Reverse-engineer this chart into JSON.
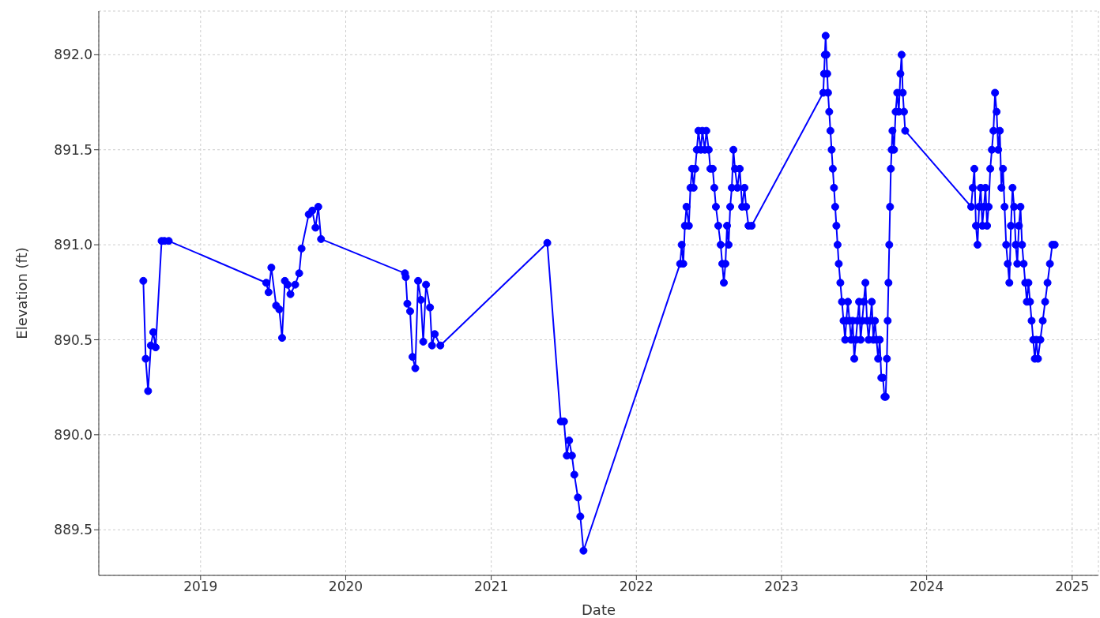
{
  "chart_data": {
    "type": "line",
    "xlabel": "Date",
    "ylabel": "Elevation (ft)",
    "x": [
      "2018-08-10",
      "2018-08-16",
      "2018-08-22",
      "2018-08-29",
      "2018-09-04",
      "2018-09-10",
      "2018-09-25",
      "2018-10-02",
      "2018-10-13",
      "2019-06-15",
      "2019-06-21",
      "2019-06-28",
      "2019-07-10",
      "2019-07-18",
      "2019-07-25",
      "2019-08-01",
      "2019-08-08",
      "2019-08-15",
      "2019-08-27",
      "2019-09-06",
      "2019-09-12",
      "2019-09-30",
      "2019-10-09",
      "2019-10-17",
      "2019-10-24",
      "2019-10-31",
      "2020-05-29",
      "2020-05-31",
      "2020-06-04",
      "2020-06-11",
      "2020-06-17",
      "2020-06-24",
      "2020-07-01",
      "2020-07-08",
      "2020-07-14",
      "2020-07-21",
      "2020-07-31",
      "2020-08-05",
      "2020-08-12",
      "2020-08-26",
      "2021-05-22",
      "2021-06-25",
      "2021-07-03",
      "2021-07-10",
      "2021-07-16",
      "2021-07-23",
      "2021-07-29",
      "2021-08-07",
      "2021-08-13",
      "2021-08-21",
      "2022-04-21",
      "2022-04-25",
      "2022-04-29",
      "2022-05-03",
      "2022-05-07",
      "2022-05-13",
      "2022-05-17",
      "2022-05-21",
      "2022-05-25",
      "2022-05-29",
      "2022-06-02",
      "2022-06-06",
      "2022-06-12",
      "2022-06-16",
      "2022-06-22",
      "2022-06-26",
      "2022-07-02",
      "2022-07-06",
      "2022-07-12",
      "2022-07-16",
      "2022-07-20",
      "2022-07-26",
      "2022-08-01",
      "2022-08-05",
      "2022-08-09",
      "2022-08-13",
      "2022-08-17",
      "2022-08-21",
      "2022-08-25",
      "2022-08-29",
      "2022-09-02",
      "2022-09-06",
      "2022-09-12",
      "2022-09-18",
      "2022-09-24",
      "2022-09-30",
      "2022-10-04",
      "2022-10-10",
      "2022-10-18",
      "2023-04-16",
      "2023-04-18",
      "2023-04-20",
      "2023-04-22",
      "2023-04-24",
      "2023-04-26",
      "2023-04-28",
      "2023-05-01",
      "2023-05-04",
      "2023-05-07",
      "2023-05-10",
      "2023-05-13",
      "2023-05-16",
      "2023-05-19",
      "2023-05-22",
      "2023-05-25",
      "2023-05-29",
      "2023-06-02",
      "2023-06-06",
      "2023-06-10",
      "2023-06-13",
      "2023-06-17",
      "2023-06-21",
      "2023-06-25",
      "2023-06-29",
      "2023-07-03",
      "2023-07-07",
      "2023-07-11",
      "2023-07-15",
      "2023-07-19",
      "2023-07-23",
      "2023-07-27",
      "2023-07-31",
      "2023-08-04",
      "2023-08-08",
      "2023-08-12",
      "2023-08-16",
      "2023-08-20",
      "2023-08-24",
      "2023-08-28",
      "2023-09-01",
      "2023-09-05",
      "2023-09-09",
      "2023-09-13",
      "2023-09-17",
      "2023-09-20",
      "2023-09-23",
      "2023-09-25",
      "2023-09-27",
      "2023-09-29",
      "2023-10-01",
      "2023-10-03",
      "2023-10-05",
      "2023-10-07",
      "2023-10-11",
      "2023-10-15",
      "2023-10-19",
      "2023-10-23",
      "2023-10-27",
      "2023-10-30",
      "2023-11-02",
      "2023-11-05",
      "2023-11-08",
      "2024-04-22",
      "2024-04-26",
      "2024-04-30",
      "2024-05-04",
      "2024-05-08",
      "2024-05-12",
      "2024-05-16",
      "2024-05-20",
      "2024-05-24",
      "2024-05-28",
      "2024-06-01",
      "2024-06-05",
      "2024-06-09",
      "2024-06-13",
      "2024-06-17",
      "2024-06-21",
      "2024-06-25",
      "2024-06-29",
      "2024-07-03",
      "2024-07-07",
      "2024-07-11",
      "2024-07-15",
      "2024-07-19",
      "2024-07-23",
      "2024-07-27",
      "2024-07-31",
      "2024-08-04",
      "2024-08-08",
      "2024-08-12",
      "2024-08-16",
      "2024-08-20",
      "2024-08-24",
      "2024-08-28",
      "2024-09-01",
      "2024-09-05",
      "2024-09-09",
      "2024-09-13",
      "2024-09-17",
      "2024-09-21",
      "2024-09-25",
      "2024-09-29",
      "2024-10-03",
      "2024-10-07",
      "2024-10-13",
      "2024-10-19",
      "2024-10-25",
      "2024-10-31",
      "2024-11-06",
      "2024-11-12",
      "2024-11-18"
    ],
    "series": [
      {
        "color": "#0000ff",
        "values": [
          890.81,
          890.4,
          890.23,
          890.47,
          890.54,
          890.46,
          891.02,
          891.02,
          891.02,
          890.8,
          890.75,
          890.88,
          890.68,
          890.66,
          890.51,
          890.81,
          890.79,
          890.74,
          890.79,
          890.85,
          890.98,
          891.16,
          891.18,
          891.09,
          891.2,
          891.03,
          890.85,
          890.83,
          890.69,
          890.65,
          890.41,
          890.35,
          890.81,
          890.71,
          890.49,
          890.79,
          890.67,
          890.47,
          890.53,
          890.47,
          891.01,
          890.07,
          890.07,
          889.89,
          889.97,
          889.89,
          889.79,
          889.67,
          889.57,
          889.39,
          890.9,
          891.0,
          890.9,
          891.1,
          891.2,
          891.1,
          891.3,
          891.4,
          891.3,
          891.4,
          891.5,
          891.6,
          891.5,
          891.6,
          891.5,
          891.6,
          891.5,
          891.4,
          891.4,
          891.3,
          891.2,
          891.1,
          891.0,
          890.9,
          890.8,
          890.9,
          891.1,
          891.0,
          891.2,
          891.3,
          891.5,
          891.4,
          891.3,
          891.4,
          891.2,
          891.3,
          891.2,
          891.1,
          891.1,
          891.8,
          891.9,
          892.0,
          892.1,
          892.0,
          891.9,
          891.8,
          891.7,
          891.6,
          891.5,
          891.4,
          891.3,
          891.2,
          891.1,
          891.0,
          890.9,
          890.8,
          890.7,
          890.6,
          890.5,
          890.6,
          890.7,
          890.6,
          890.5,
          890.6,
          890.4,
          890.5,
          890.6,
          890.7,
          890.5,
          890.6,
          890.7,
          890.8,
          890.6,
          890.5,
          890.6,
          890.7,
          890.5,
          890.6,
          890.5,
          890.4,
          890.5,
          890.3,
          890.3,
          890.2,
          890.2,
          890.4,
          890.6,
          890.8,
          891.0,
          891.2,
          891.4,
          891.5,
          891.6,
          891.5,
          891.7,
          891.8,
          891.7,
          891.9,
          892.0,
          891.8,
          891.7,
          891.6,
          891.2,
          891.3,
          891.4,
          891.1,
          891.0,
          891.2,
          891.3,
          891.1,
          891.2,
          891.3,
          891.1,
          891.2,
          891.4,
          891.5,
          891.6,
          891.8,
          891.7,
          891.5,
          891.6,
          891.3,
          891.4,
          891.2,
          891.0,
          890.9,
          890.8,
          891.1,
          891.3,
          891.2,
          891.0,
          890.9,
          891.1,
          891.2,
          891.0,
          890.9,
          890.8,
          890.7,
          890.8,
          890.7,
          890.6,
          890.5,
          890.4,
          890.5,
          890.4,
          890.5,
          890.6,
          890.7,
          890.8,
          890.9,
          891.0,
          891.0
        ]
      }
    ],
    "xlim": [
      "2018-04-20",
      "2025-03-08"
    ],
    "xticks": [
      {
        "value": "2019",
        "label": "2019"
      },
      {
        "value": "2020",
        "label": "2020"
      },
      {
        "value": "2021",
        "label": "2021"
      },
      {
        "value": "2022",
        "label": "2022"
      },
      {
        "value": "2023",
        "label": "2023"
      },
      {
        "value": "2024",
        "label": "2024"
      },
      {
        "value": "2025",
        "label": "2025"
      }
    ],
    "ylim": [
      889.26,
      892.23
    ],
    "yticks": [
      {
        "value": 889.5,
        "label": "889.5"
      },
      {
        "value": 890,
        "label": "890.0"
      },
      {
        "value": 890.5,
        "label": "890.5"
      },
      {
        "value": 891,
        "label": "891.0"
      },
      {
        "value": 891.5,
        "label": "891.5"
      },
      {
        "value": 892,
        "label": "892.0"
      }
    ],
    "grid": true,
    "marker": "circle",
    "line_style": "solid"
  }
}
